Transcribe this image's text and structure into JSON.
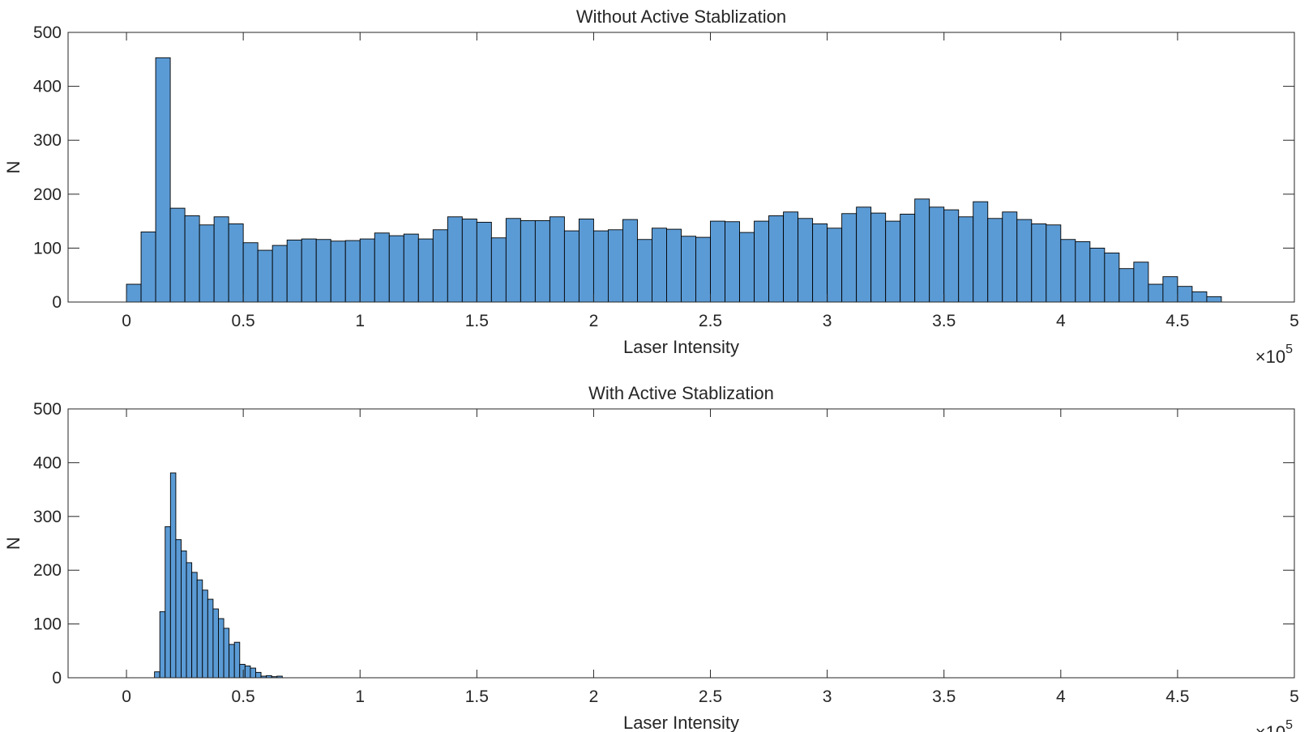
{
  "chart_data": [
    {
      "type": "histogram",
      "title": "Without Active Stablization",
      "xlabel": "Laser Intensity",
      "ylabel": "N",
      "x_multiplier": "×10",
      "x_multiplier_exponent": "5",
      "xlim": [
        -0.25,
        5
      ],
      "ylim": [
        0,
        500
      ],
      "xticks": [
        0,
        0.5,
        1,
        1.5,
        2,
        2.5,
        3,
        3.5,
        4,
        4.5,
        5
      ],
      "xtick_labels": [
        "0",
        "0.5",
        "1",
        "1.5",
        "2",
        "2.5",
        "3",
        "3.5",
        "4",
        "4.5",
        "5"
      ],
      "yticks": [
        0,
        100,
        200,
        300,
        400,
        500
      ],
      "ytick_labels": [
        "0",
        "100",
        "200",
        "300",
        "400",
        "500"
      ],
      "bar_color": "#5b9bd5",
      "bin_start": 0,
      "bin_width": 0.0625,
      "counts": [
        33,
        130,
        453,
        174,
        160,
        143,
        158,
        145,
        110,
        96,
        105,
        115,
        117,
        116,
        113,
        114,
        117,
        128,
        123,
        126,
        117,
        134,
        158,
        154,
        148,
        119,
        155,
        151,
        151,
        158,
        132,
        154,
        132,
        134,
        153,
        116,
        137,
        135,
        122,
        120,
        150,
        149,
        129,
        150,
        160,
        167,
        155,
        145,
        137,
        164,
        176,
        165,
        150,
        163,
        191,
        176,
        171,
        158,
        186,
        155,
        167,
        153,
        145,
        143,
        116,
        112,
        100,
        91,
        62,
        74,
        33,
        47,
        29,
        19,
        10
      ]
    },
    {
      "type": "histogram",
      "title": "With Active Stablization",
      "xlabel": "Laser Intensity",
      "ylabel": "N",
      "x_multiplier": "×10",
      "x_multiplier_exponent": "5",
      "xlim": [
        -0.25,
        5
      ],
      "ylim": [
        0,
        500
      ],
      "xticks": [
        0,
        0.5,
        1,
        1.5,
        2,
        2.5,
        3,
        3.5,
        4,
        4.5,
        5
      ],
      "xtick_labels": [
        "0",
        "0.5",
        "1",
        "1.5",
        "2",
        "2.5",
        "3",
        "3.5",
        "4",
        "4.5",
        "5"
      ],
      "yticks": [
        0,
        100,
        200,
        300,
        400,
        500
      ],
      "ytick_labels": [
        "0",
        "100",
        "200",
        "300",
        "400",
        "500"
      ],
      "bar_color": "#5b9bd5",
      "bin_start": 0.12,
      "bin_width": 0.0228,
      "counts": [
        11,
        123,
        281,
        381,
        257,
        236,
        214,
        196,
        182,
        163,
        146,
        128,
        110,
        92,
        62,
        66,
        25,
        22,
        18,
        10,
        3,
        4,
        2,
        3
      ]
    }
  ]
}
